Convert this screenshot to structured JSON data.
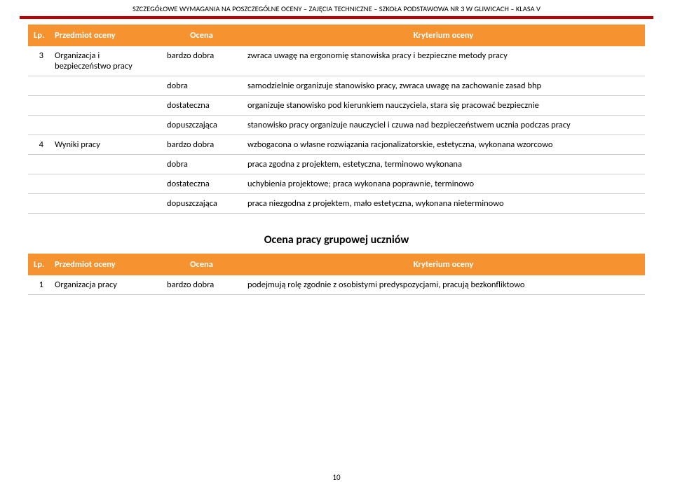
{
  "header": "SZCZEGÓŁOWE WYMAGANIA NA POSZCZEGÓLNE OCENY – ZAJĘCIA TECHNICZNE – SZKOŁA PODSTAWOWA NR 3 W GLIWICACH – KLASA V",
  "table1": {
    "head": {
      "lp": "Lp.",
      "przedmiot": "Przedmiot oceny",
      "ocena": "Ocena",
      "kryterium": "Kryterium oceny"
    },
    "r0": {
      "lp": "3",
      "przedmiot": "Organizacja i bezpieczeństwo pracy",
      "ocena": "bardzo dobra",
      "kr": "zwraca uwagę na ergonomię stanowiska pracy i bezpieczne metody pracy"
    },
    "r1": {
      "ocena": "dobra",
      "kr": "samodzielnie organizuje stanowisko pracy, zwraca uwagę na zachowanie zasad bhp"
    },
    "r2": {
      "ocena": "dostateczna",
      "kr": "organizuje stanowisko pod kierunkiem nauczyciela, stara się pracować bezpiecznie"
    },
    "r3": {
      "ocena": "dopuszczająca",
      "kr": "stanowisko pracy organizuje nauczyciel i czuwa nad bezpieczeństwem ucznia podczas pracy"
    },
    "r4": {
      "lp": "4",
      "przedmiot": "Wyniki pracy",
      "ocena": "bardzo dobra",
      "kr": "wzbogacona o własne rozwiązania racjonalizatorskie, estetyczna, wykonana wzorcowo"
    },
    "r5": {
      "ocena": "dobra",
      "kr": "praca zgodna z projektem, estetyczna, terminowo wykonana"
    },
    "r6": {
      "ocena": "dostateczna",
      "kr": "uchybienia projektowe; praca wykonana poprawnie, terminowo"
    },
    "r7": {
      "ocena": "dopuszczająca",
      "kr": "praca niezgodna z projektem, mało estetyczna, wykonana nieterminowo"
    }
  },
  "section2_title": "Ocena pracy grupowej uczniów",
  "table2": {
    "head": {
      "lp": "Lp.",
      "przedmiot": "Przedmiot oceny",
      "ocena": "Ocena",
      "kryterium": "Kryterium oceny"
    },
    "r0": {
      "lp": "1",
      "przedmiot": "Organizacja pracy",
      "ocena": "bardzo dobra",
      "kr": "podejmują rolę zgodnie z osobistymi predyspozycjami, pracują bezkonfliktowo"
    }
  },
  "page_number": "10"
}
